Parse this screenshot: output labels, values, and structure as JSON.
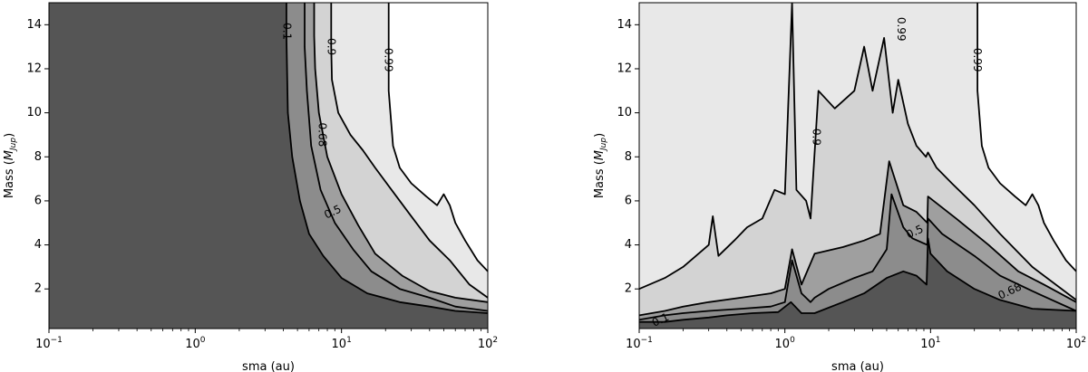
{
  "colors": {
    "region_lt_0_1": "#555555",
    "region_0_1_0_5": "#8c8c8c",
    "region_0_5_0_68": "#9f9f9f",
    "region_0_68_0_9": "#d3d3d3",
    "region_0_9_0_99": "#e8e8e8",
    "region_gt_0_99": "#ffffff",
    "contour_line": "#000000"
  },
  "chart_data": [
    {
      "type": "contour",
      "xlabel": "sma (au)",
      "ylabel_main": "Mass (",
      "ylabel_symbol": "M",
      "ylabel_subscript": "Jup",
      "ylabel_tail": ")",
      "x_scale": "log",
      "xlim": [
        0.1,
        100
      ],
      "ylim": [
        0.2,
        15
      ],
      "x_ticks": [
        {
          "value": 0.1,
          "base": "10",
          "exp": "−1"
        },
        {
          "value": 1,
          "base": "10",
          "exp": "0"
        },
        {
          "value": 10,
          "base": "10",
          "exp": "1"
        },
        {
          "value": 100,
          "base": "10",
          "exp": "2"
        }
      ],
      "y_ticks": [
        {
          "value": 2,
          "label": "2"
        },
        {
          "value": 4,
          "label": "4"
        },
        {
          "value": 6,
          "label": "6"
        },
        {
          "value": 8,
          "label": "8"
        },
        {
          "value": 10,
          "label": "10"
        },
        {
          "value": 12,
          "label": "12"
        },
        {
          "value": 14,
          "label": "14"
        }
      ],
      "levels": [
        0.1,
        0.5,
        0.68,
        0.9,
        0.99
      ],
      "contours": [
        {
          "level": 0.1,
          "points": [
            [
              4.2,
              15
            ],
            [
              4.2,
              13.5
            ],
            [
              4.3,
              10
            ],
            [
              4.6,
              8
            ],
            [
              5.2,
              6
            ],
            [
              6.0,
              4.5
            ],
            [
              7.5,
              3.5
            ],
            [
              10,
              2.5
            ],
            [
              15,
              1.8
            ],
            [
              25,
              1.4
            ],
            [
              40,
              1.2
            ],
            [
              60,
              1.0
            ],
            [
              100,
              0.9
            ]
          ]
        },
        {
          "level": 0.5,
          "points": [
            [
              5.6,
              15
            ],
            [
              5.6,
              13
            ],
            [
              5.8,
              11
            ],
            [
              6.2,
              8.5
            ],
            [
              7.2,
              6.5
            ],
            [
              9,
              5
            ],
            [
              12,
              3.8
            ],
            [
              16,
              2.8
            ],
            [
              25,
              2.0
            ],
            [
              40,
              1.6
            ],
            [
              60,
              1.2
            ],
            [
              100,
              1.0
            ]
          ]
        },
        {
          "level": 0.68,
          "points": [
            [
              6.5,
              15
            ],
            [
              6.5,
              13.5
            ],
            [
              6.6,
              12
            ],
            [
              7.0,
              10
            ],
            [
              8.0,
              8
            ],
            [
              10,
              6.3
            ],
            [
              13,
              4.9
            ],
            [
              17,
              3.6
            ],
            [
              26,
              2.6
            ],
            [
              40,
              1.9
            ],
            [
              60,
              1.6
            ],
            [
              100,
              1.4
            ]
          ]
        },
        {
          "level": 0.9,
          "points": [
            [
              8.5,
              15
            ],
            [
              8.5,
              13
            ],
            [
              8.6,
              11.5
            ],
            [
              9.5,
              10
            ],
            [
              11.5,
              9
            ],
            [
              14,
              8.3
            ],
            [
              17,
              7.5
            ],
            [
              22,
              6.5
            ],
            [
              30,
              5.3
            ],
            [
              40,
              4.2
            ],
            [
              55,
              3.3
            ],
            [
              75,
              2.2
            ],
            [
              100,
              1.6
            ]
          ]
        },
        {
          "level": 0.99,
          "points": [
            [
              21,
              15
            ],
            [
              21,
              11
            ],
            [
              22.5,
              8.5
            ],
            [
              25,
              7.5
            ],
            [
              30,
              6.8
            ],
            [
              38,
              6.2
            ],
            [
              45,
              5.8
            ],
            [
              50,
              6.3
            ],
            [
              55,
              5.8
            ],
            [
              60,
              5.0
            ],
            [
              70,
              4.2
            ],
            [
              85,
              3.3
            ],
            [
              100,
              2.8
            ]
          ]
        }
      ],
      "contour_labels": [
        {
          "text": "0.1",
          "x": 4.25,
          "y": 13.7
        },
        {
          "text": "0.9",
          "x": 8.5,
          "y": 13.0
        },
        {
          "text": "0.99",
          "x": 21,
          "y": 12.4
        },
        {
          "text": "0.68",
          "x": 7.4,
          "y": 9.0
        },
        {
          "text": "0.5",
          "x": 8.7,
          "y": 5.5
        }
      ]
    },
    {
      "type": "contour",
      "xlabel": "sma (au)",
      "ylabel_main": "Mass (",
      "ylabel_symbol": "M",
      "ylabel_subscript": "Jup",
      "ylabel_tail": ")",
      "x_scale": "log",
      "xlim": [
        0.1,
        100
      ],
      "ylim": [
        0.2,
        15
      ],
      "x_ticks": [
        {
          "value": 0.1,
          "base": "10",
          "exp": "−1"
        },
        {
          "value": 1,
          "base": "10",
          "exp": "0"
        },
        {
          "value": 10,
          "base": "10",
          "exp": "1"
        },
        {
          "value": 100,
          "base": "10",
          "exp": "2"
        }
      ],
      "y_ticks": [
        {
          "value": 2,
          "label": "2"
        },
        {
          "value": 4,
          "label": "4"
        },
        {
          "value": 6,
          "label": "6"
        },
        {
          "value": 8,
          "label": "8"
        },
        {
          "value": 10,
          "label": "10"
        },
        {
          "value": 12,
          "label": "12"
        },
        {
          "value": 14,
          "label": "14"
        }
      ],
      "levels": [
        0.1,
        0.5,
        0.68,
        0.9,
        0.99
      ],
      "contours": [
        {
          "level": 0.1,
          "points": [
            [
              0.1,
              0.5
            ],
            [
              0.15,
              0.5
            ],
            [
              0.2,
              0.6
            ],
            [
              0.3,
              0.7
            ],
            [
              0.4,
              0.8
            ],
            [
              0.6,
              0.9
            ],
            [
              0.9,
              0.95
            ],
            [
              1.1,
              1.4
            ],
            [
              1.3,
              0.9
            ],
            [
              1.6,
              0.9
            ],
            [
              2.5,
              1.4
            ],
            [
              3.5,
              1.8
            ],
            [
              5,
              2.5
            ],
            [
              6.5,
              2.8
            ],
            [
              8,
              2.6
            ],
            [
              9.4,
              2.2
            ],
            [
              9.6,
              4.3
            ],
            [
              10,
              3.6
            ],
            [
              13,
              2.8
            ],
            [
              20,
              2.0
            ],
            [
              30,
              1.5
            ],
            [
              50,
              1.1
            ],
            [
              100,
              1.0
            ]
          ]
        },
        {
          "level": 0.5,
          "points": [
            [
              0.1,
              0.6
            ],
            [
              0.15,
              0.8
            ],
            [
              0.2,
              0.9
            ],
            [
              0.3,
              1.0
            ],
            [
              0.5,
              1.1
            ],
            [
              0.8,
              1.2
            ],
            [
              1.0,
              1.4
            ],
            [
              1.12,
              3.3
            ],
            [
              1.3,
              1.8
            ],
            [
              1.5,
              1.4
            ],
            [
              1.6,
              1.6
            ],
            [
              2.0,
              2.0
            ],
            [
              3.0,
              2.5
            ],
            [
              4.0,
              2.8
            ],
            [
              5.0,
              3.8
            ],
            [
              5.4,
              6.3
            ],
            [
              6.5,
              4.8
            ],
            [
              7.5,
              4.3
            ],
            [
              9.5,
              4.0
            ],
            [
              9.6,
              5.2
            ],
            [
              12,
              4.5
            ],
            [
              20,
              3.5
            ],
            [
              30,
              2.6
            ],
            [
              50,
              1.9
            ],
            [
              100,
              1.0
            ]
          ]
        },
        {
          "level": 0.68,
          "points": [
            [
              0.1,
              0.8
            ],
            [
              0.15,
              1.0
            ],
            [
              0.2,
              1.2
            ],
            [
              0.3,
              1.4
            ],
            [
              0.5,
              1.6
            ],
            [
              0.8,
              1.8
            ],
            [
              1.0,
              2.0
            ],
            [
              1.12,
              3.8
            ],
            [
              1.3,
              2.2
            ],
            [
              1.6,
              3.6
            ],
            [
              2.5,
              3.9
            ],
            [
              3.5,
              4.2
            ],
            [
              4.5,
              4.5
            ],
            [
              5.2,
              7.8
            ],
            [
              6.5,
              5.8
            ],
            [
              8.0,
              5.5
            ],
            [
              9.5,
              5.0
            ],
            [
              9.6,
              6.2
            ],
            [
              15,
              5.2
            ],
            [
              25,
              4.0
            ],
            [
              40,
              2.8
            ],
            [
              60,
              2.2
            ],
            [
              100,
              1.4
            ]
          ]
        },
        {
          "level": 0.9,
          "points": [
            [
              0.1,
              2.0
            ],
            [
              0.15,
              2.5
            ],
            [
              0.2,
              3.0
            ],
            [
              0.3,
              4.0
            ],
            [
              0.32,
              5.3
            ],
            [
              0.35,
              3.5
            ],
            [
              0.45,
              4.2
            ],
            [
              0.55,
              4.8
            ],
            [
              0.7,
              5.2
            ],
            [
              0.85,
              6.5
            ],
            [
              1.0,
              6.3
            ],
            [
              1.12,
              15
            ],
            [
              1.2,
              6.5
            ],
            [
              1.4,
              6.0
            ],
            [
              1.5,
              5.2
            ],
            [
              1.7,
              11
            ],
            [
              2.2,
              10.2
            ],
            [
              3.0,
              11
            ],
            [
              3.5,
              13
            ],
            [
              4.0,
              11
            ],
            [
              4.8,
              13.4
            ],
            [
              5.5,
              10
            ],
            [
              6.0,
              11.5
            ],
            [
              7.0,
              9.5
            ],
            [
              8.0,
              8.5
            ],
            [
              9.3,
              8.0
            ],
            [
              9.6,
              8.2
            ],
            [
              11,
              7.5
            ],
            [
              14,
              6.8
            ],
            [
              20,
              5.8
            ],
            [
              30,
              4.5
            ],
            [
              50,
              3.0
            ],
            [
              100,
              1.5
            ]
          ]
        },
        {
          "level": 0.99,
          "points": [
            [
              21,
              15
            ],
            [
              21,
              11
            ],
            [
              22.5,
              8.5
            ],
            [
              25,
              7.5
            ],
            [
              30,
              6.8
            ],
            [
              38,
              6.2
            ],
            [
              45,
              5.8
            ],
            [
              50,
              6.3
            ],
            [
              55,
              5.8
            ],
            [
              60,
              5.0
            ],
            [
              70,
              4.2
            ],
            [
              85,
              3.3
            ],
            [
              100,
              2.8
            ]
          ]
        }
      ],
      "contour_labels": [
        {
          "text": "0.1",
          "x": 0.14,
          "y": 0.6
        },
        {
          "text": "0.9",
          "x": 1.65,
          "y": 8.9
        },
        {
          "text": "0.99",
          "x": 6.3,
          "y": 13.8
        },
        {
          "text": "0.99",
          "x": 21,
          "y": 12.4
        },
        {
          "text": "0.5",
          "x": 7.8,
          "y": 4.6
        },
        {
          "text": "0.68",
          "x": 35,
          "y": 1.9
        }
      ]
    }
  ]
}
